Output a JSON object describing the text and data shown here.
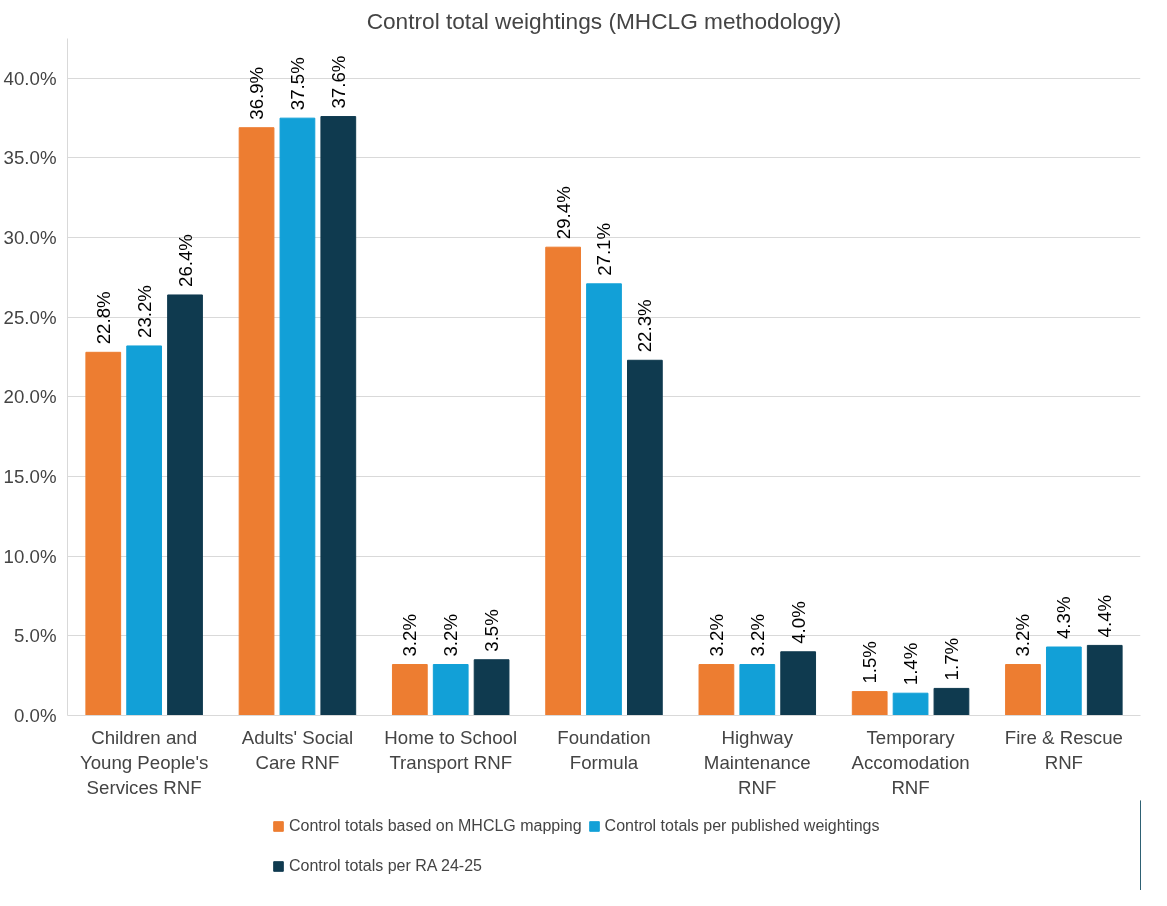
{
  "chart_data": {
    "type": "bar",
    "title": "Control total weightings (MHCLG methodology)",
    "categories": [
      "Children and Young People's Services RNF",
      "Adults' Social Care RNF",
      "Home to School Transport RNF",
      "Foundation Formula",
      "Highway Maintenance RNF",
      "Temporary Accomodation RNF",
      "Fire & Rescue RNF"
    ],
    "series": [
      {
        "name": "Control totals based on MHCLG mapping",
        "color": "#ed7d31",
        "values": [
          22.8,
          36.9,
          3.2,
          29.4,
          3.2,
          1.5,
          3.2
        ],
        "value_labels": [
          "22.8%",
          "36.9%",
          "3.2%",
          "29.4%",
          "3.2%",
          "1.5%",
          "3.2%"
        ]
      },
      {
        "name": "Control totals per published weightings",
        "color": "#12a0d7",
        "values": [
          23.2,
          37.5,
          3.2,
          27.1,
          3.2,
          1.4,
          4.3
        ],
        "value_labels": [
          "23.2%",
          "37.5%",
          "3.2%",
          "27.1%",
          "3.2%",
          "1.4%",
          "4.3%"
        ]
      },
      {
        "name": "Control totals per RA 24-25",
        "color": "#0f3a4f",
        "values": [
          26.4,
          37.6,
          3.5,
          22.3,
          4.0,
          1.7,
          4.4
        ],
        "value_labels": [
          "26.4%",
          "37.6%",
          "3.5%",
          "22.3%",
          "4.0%",
          "1.7%",
          "4.4%"
        ]
      }
    ],
    "ylim": [
      0,
      42.5
    ],
    "yticks": [
      {
        "value": 0,
        "label": "0.0%"
      },
      {
        "value": 5,
        "label": "5.0%"
      },
      {
        "value": 10,
        "label": "10.0%"
      },
      {
        "value": 15,
        "label": "15.0%"
      },
      {
        "value": 20,
        "label": "20.0%"
      },
      {
        "value": 25,
        "label": "25.0%"
      },
      {
        "value": 30,
        "label": "30.0%"
      },
      {
        "value": 35,
        "label": "35.0%"
      },
      {
        "value": 40,
        "label": "40.0%"
      }
    ],
    "grid": "y",
    "legend": "bottom"
  }
}
